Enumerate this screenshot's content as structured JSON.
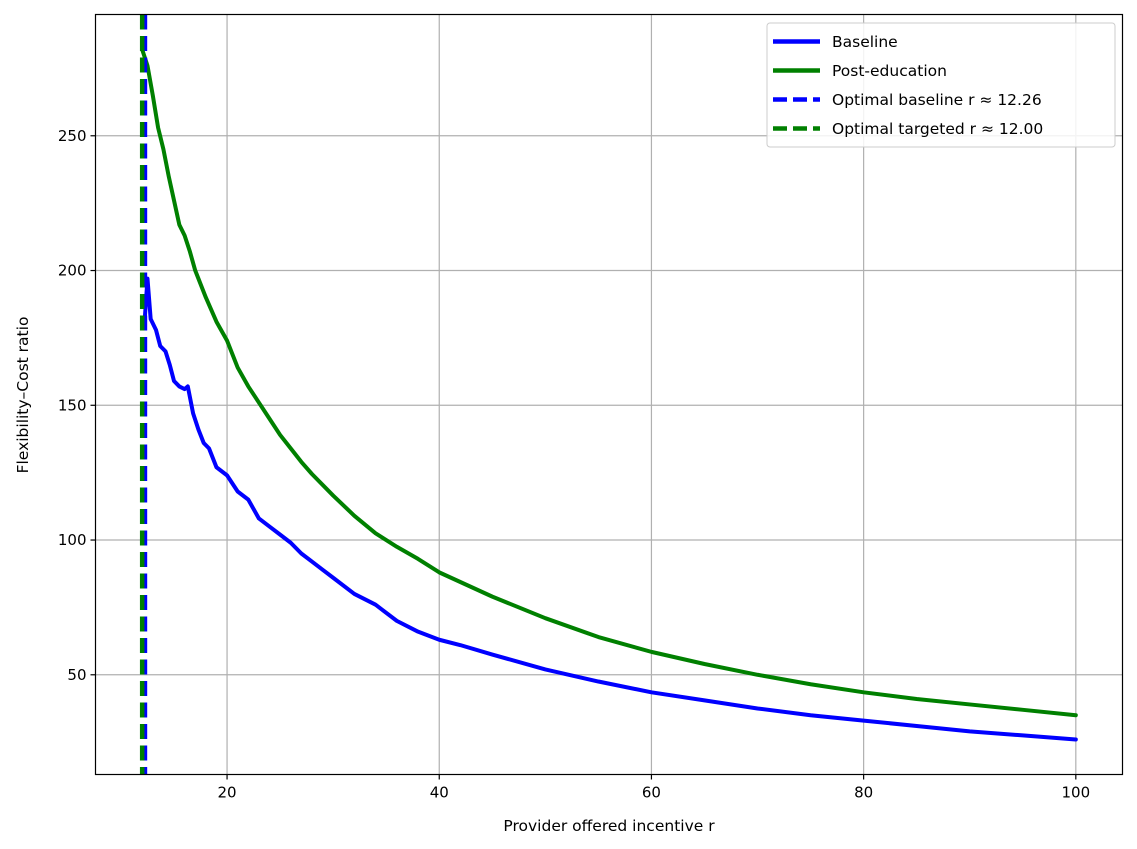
{
  "chart_data": {
    "type": "line",
    "xlabel": "Provider offered incentive r",
    "ylabel": "Flexibility–Cost ratio",
    "xlim": [
      7.6,
      104.4
    ],
    "ylim": [
      13,
      295
    ],
    "x_ticks": [
      20,
      40,
      60,
      80,
      100
    ],
    "y_ticks": [
      50,
      100,
      150,
      200,
      250
    ],
    "grid": true,
    "legend_position": "top-right",
    "series": [
      {
        "name": "Baseline",
        "color": "#0000ff",
        "style": "solid",
        "points": [
          [
            12.26,
            183
          ],
          [
            12.5,
            197
          ],
          [
            12.8,
            182
          ],
          [
            13.3,
            178
          ],
          [
            13.7,
            172
          ],
          [
            14.2,
            170
          ],
          [
            14.6,
            165
          ],
          [
            15.0,
            159
          ],
          [
            15.5,
            157
          ],
          [
            16.0,
            156
          ],
          [
            16.3,
            157
          ],
          [
            16.8,
            147
          ],
          [
            17.3,
            141
          ],
          [
            17.8,
            136
          ],
          [
            18.3,
            134
          ],
          [
            19.0,
            127
          ],
          [
            20.0,
            124
          ],
          [
            21.0,
            118
          ],
          [
            22.0,
            115
          ],
          [
            23.0,
            108
          ],
          [
            24.0,
            105
          ],
          [
            25.0,
            102
          ],
          [
            26.0,
            99
          ],
          [
            27.0,
            95
          ],
          [
            28.0,
            92
          ],
          [
            29.0,
            89
          ],
          [
            30.0,
            86
          ],
          [
            32.0,
            80
          ],
          [
            34.0,
            76
          ],
          [
            36.0,
            70
          ],
          [
            38.0,
            66
          ],
          [
            40.0,
            63
          ],
          [
            42.0,
            61
          ],
          [
            45.0,
            57.5
          ],
          [
            50.0,
            52
          ],
          [
            55.0,
            47.5
          ],
          [
            60.0,
            43.5
          ],
          [
            65.0,
            40.5
          ],
          [
            70.0,
            37.5
          ],
          [
            75.0,
            35
          ],
          [
            80.0,
            33
          ],
          [
            85.0,
            31
          ],
          [
            90.0,
            29
          ],
          [
            95.0,
            27.5
          ],
          [
            100.0,
            26
          ]
        ]
      },
      {
        "name": "Post-education",
        "color": "#008000",
        "style": "solid",
        "points": [
          [
            12.0,
            282
          ],
          [
            12.5,
            276
          ],
          [
            13.0,
            265
          ],
          [
            13.5,
            253
          ],
          [
            14.0,
            245
          ],
          [
            14.5,
            235
          ],
          [
            15.0,
            226
          ],
          [
            15.5,
            217
          ],
          [
            16.0,
            213
          ],
          [
            16.5,
            207
          ],
          [
            17.0,
            200
          ],
          [
            18.0,
            190
          ],
          [
            19.0,
            181
          ],
          [
            20.0,
            174
          ],
          [
            21.0,
            164
          ],
          [
            22.0,
            157
          ],
          [
            23.0,
            151
          ],
          [
            24.0,
            145
          ],
          [
            25.0,
            139
          ],
          [
            26.0,
            134
          ],
          [
            27.0,
            129
          ],
          [
            28.0,
            124.5
          ],
          [
            30.0,
            116.5
          ],
          [
            32.0,
            109
          ],
          [
            34.0,
            102.5
          ],
          [
            36.0,
            97.5
          ],
          [
            38.0,
            93
          ],
          [
            40.0,
            88
          ],
          [
            45.0,
            79
          ],
          [
            50.0,
            71
          ],
          [
            55.0,
            64
          ],
          [
            60.0,
            58.5
          ],
          [
            65.0,
            54
          ],
          [
            70.0,
            50
          ],
          [
            75.0,
            46.5
          ],
          [
            80.0,
            43.5
          ],
          [
            85.0,
            41
          ],
          [
            90.0,
            39
          ],
          [
            95.0,
            37
          ],
          [
            100.0,
            35
          ]
        ]
      },
      {
        "name": "Optimal baseline r ≈ 12.26",
        "color": "#0000ff",
        "style": "dashed",
        "vline": 12.26
      },
      {
        "name": "Optimal targeted r ≈ 12.00",
        "color": "#008000",
        "style": "dashed",
        "vline": 12.0
      }
    ]
  }
}
